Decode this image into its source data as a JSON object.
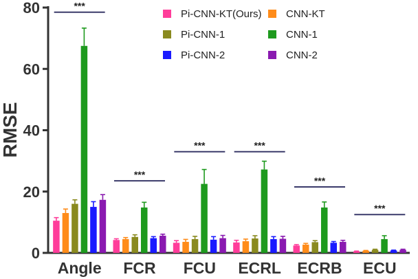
{
  "chart_data": {
    "type": "bar",
    "ylabel": "RMSE",
    "ylim": [
      0,
      80
    ],
    "yticks": [
      "0",
      "20",
      "40",
      "60",
      "80"
    ],
    "categories": [
      "Angle",
      "FCR",
      "FCU",
      "ECRL",
      "ECRB",
      "ECU"
    ],
    "series": [
      {
        "name": "Pi-CNN-KT(Ours)",
        "color": "#ff3d9a",
        "values": [
          10.5,
          4.2,
          3.3,
          3.4,
          2.4,
          0.5
        ],
        "errors": [
          1.0,
          0.4,
          0.7,
          0.7,
          0.3,
          0.1
        ]
      },
      {
        "name": "CNN-KT",
        "color": "#ff8c1a",
        "values": [
          13.0,
          4.5,
          3.6,
          3.8,
          2.7,
          0.7
        ],
        "errors": [
          1.3,
          0.5,
          0.8,
          0.7,
          0.4,
          0.1
        ]
      },
      {
        "name": "Pi-CNN-1",
        "color": "#8a8a1f",
        "values": [
          16.0,
          5.2,
          4.5,
          4.7,
          3.5,
          1.0
        ],
        "errors": [
          1.3,
          0.7,
          0.9,
          0.9,
          0.5,
          0.2
        ]
      },
      {
        "name": "CNN-1",
        "color": "#1e9a1e",
        "values": [
          67.5,
          14.8,
          22.5,
          27.2,
          14.8,
          4.5
        ],
        "errors": [
          5.8,
          1.7,
          4.7,
          2.7,
          1.8,
          1.1
        ]
      },
      {
        "name": "Pi-CNN-2",
        "color": "#1a1aff",
        "values": [
          15.0,
          4.8,
          4.3,
          4.5,
          3.3,
          0.8
        ],
        "errors": [
          1.7,
          0.5,
          1.0,
          0.8,
          0.4,
          0.1
        ]
      },
      {
        "name": "CNN-2",
        "color": "#8a1ab0",
        "values": [
          17.3,
          5.6,
          4.8,
          4.6,
          3.6,
          1.0
        ],
        "errors": [
          1.7,
          0.5,
          0.9,
          0.8,
          0.5,
          0.2
        ]
      }
    ],
    "significance": [
      {
        "category": "Angle",
        "label": "***",
        "y": 78.5
      },
      {
        "category": "FCR",
        "label": "***",
        "y": 23.5
      },
      {
        "category": "FCU",
        "label": "***",
        "y": 33.0
      },
      {
        "category": "ECRL",
        "label": "***",
        "y": 33.0
      },
      {
        "category": "ECRB",
        "label": "***",
        "y": 21.5
      },
      {
        "category": "ECU",
        "label": "***",
        "y": 12.5
      }
    ],
    "legend": {
      "placement": "top-right",
      "columns": 2
    }
  }
}
